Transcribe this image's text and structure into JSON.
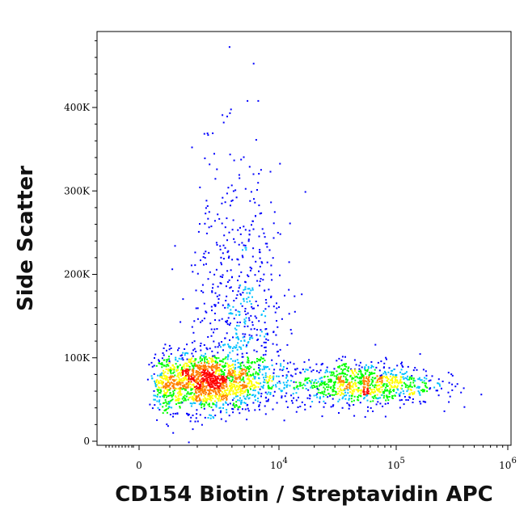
{
  "chart_data": {
    "type": "scatter",
    "title": "",
    "xlabel": "CD154 Biotin / Streptavidin APC",
    "ylabel": "Side Scatter",
    "xscale": "biexponential",
    "xlim": [
      -1500,
      1000000
    ],
    "ylim": [
      -5000,
      490000
    ],
    "grid": false,
    "legend": "none",
    "colormap": [
      "#0000ff",
      "#00c0ff",
      "#00ff00",
      "#ffff00",
      "#ff8000",
      "#ff0000"
    ],
    "x_ticks": [
      {
        "value": 0,
        "label": "0",
        "sup": ""
      },
      {
        "value": 10000,
        "label": "10",
        "sup": "4"
      },
      {
        "value": 100000,
        "label": "10",
        "sup": "5"
      },
      {
        "value": 1000000,
        "label": "10",
        "sup": "6"
      }
    ],
    "y_ticks": [
      {
        "value": 0,
        "label": "0"
      },
      {
        "value": 100000,
        "label": "100K"
      },
      {
        "value": 200000,
        "label": "200K"
      },
      {
        "value": 300000,
        "label": "300K"
      },
      {
        "value": 400000,
        "label": "400K"
      }
    ],
    "populations": [
      {
        "name": "",
        "x_center": 3500,
        "y_center": 72000,
        "density": "high",
        "points": 1700
      },
      {
        "name": "",
        "x_center": 50000,
        "y_center": 70000,
        "density": "medium",
        "points": 900
      },
      {
        "name": "",
        "x_center": 5500,
        "y_center": 230000,
        "density": "low",
        "points": 450
      }
    ]
  }
}
